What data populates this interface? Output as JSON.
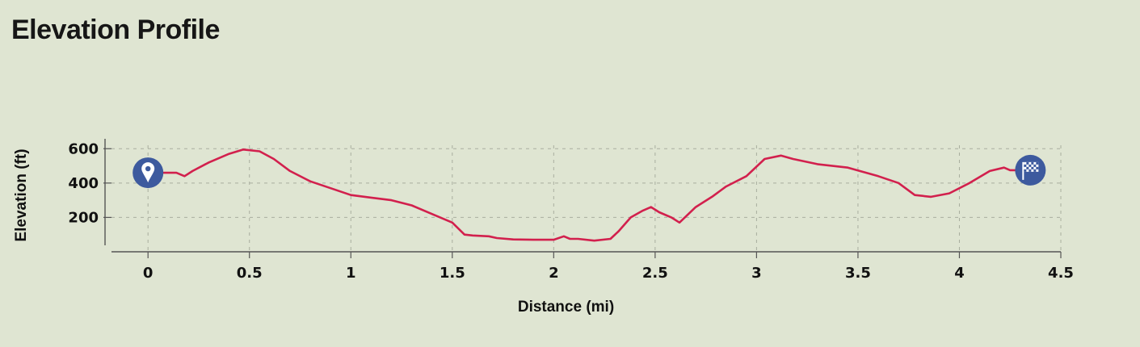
{
  "page": {
    "title": "Elevation Profile"
  },
  "chart_data": {
    "type": "line",
    "title": "Elevation Profile",
    "xlabel": "Distance (mi)",
    "ylabel": "Elevation (ft)",
    "xlim": [
      -0.18,
      4.5
    ],
    "ylim": [
      0,
      620
    ],
    "x_ticks": [
      0,
      0.5,
      1,
      1.5,
      2,
      2.5,
      3,
      3.5,
      4,
      4.5
    ],
    "x_tick_labels": [
      "0",
      "0.5",
      "1",
      "1.5",
      "2",
      "2.5",
      "3",
      "3.5",
      "4",
      "4.5"
    ],
    "y_ticks": [
      200,
      400,
      600
    ],
    "y_tick_labels": [
      "200",
      "400",
      "600"
    ],
    "grid": true,
    "line_color": "#d2204d",
    "marker_color": "#3d5a9e",
    "start_marker_icon": "location-pin-icon",
    "end_marker_icon": "checkered-flag-icon",
    "series": [
      {
        "x": [
          0,
          0.14,
          0.18,
          0.22,
          0.3,
          0.4,
          0.47,
          0.55,
          0.62,
          0.7,
          0.8,
          0.9,
          1.0,
          1.1,
          1.2,
          1.3,
          1.4,
          1.5,
          1.56,
          1.6,
          1.68,
          1.72,
          1.8,
          1.9,
          2.0,
          2.05,
          2.08,
          2.12,
          2.2,
          2.28,
          2.32,
          2.38,
          2.44,
          2.48,
          2.52,
          2.58,
          2.62,
          2.7,
          2.78,
          2.85,
          2.95,
          3.04,
          3.12,
          3.18,
          3.3,
          3.45,
          3.6,
          3.7,
          3.78,
          3.86,
          3.95,
          4.05,
          4.15,
          4.22,
          4.25,
          4.35
        ],
        "y": [
          460,
          460,
          440,
          470,
          520,
          570,
          595,
          585,
          540,
          470,
          410,
          370,
          330,
          315,
          300,
          270,
          220,
          170,
          100,
          95,
          90,
          80,
          72,
          70,
          70,
          90,
          75,
          75,
          65,
          75,
          120,
          200,
          240,
          260,
          230,
          200,
          170,
          260,
          320,
          380,
          440,
          540,
          560,
          540,
          510,
          490,
          440,
          400,
          330,
          320,
          340,
          400,
          470,
          490,
          475,
          475
        ]
      }
    ]
  }
}
